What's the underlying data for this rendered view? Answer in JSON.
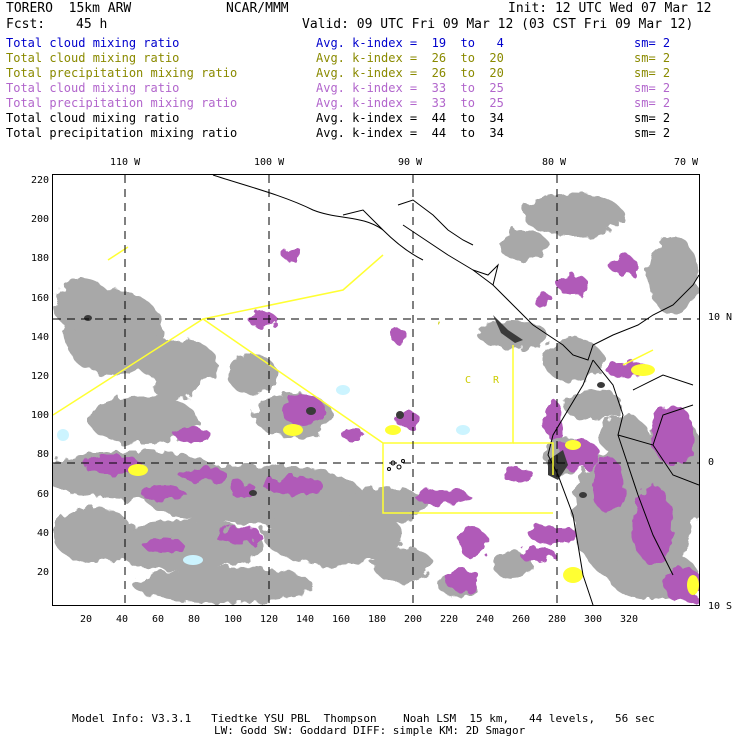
{
  "header": {
    "model": "TORERO  15km ARW",
    "org": "NCAR/MMM",
    "init": "Init: 12 UTC Wed 07 Mar 12",
    "fcst_label": "Fcst:",
    "fcst_value": "45 h",
    "valid": "Valid: 09 UTC Fri 09 Mar 12 (03 CST Fri 09 Mar 12)"
  },
  "legend": [
    {
      "name": "Total cloud mixing ratio",
      "kindex": "Avg. k-index =  19  to   4",
      "sm": "sm= 2",
      "color": "#0000cc"
    },
    {
      "name": "Total cloud mixing ratio",
      "kindex": "Avg. k-index =  26  to  20",
      "sm": "sm= 2",
      "color": "#8a8a00"
    },
    {
      "name": "Total precipitation mixing ratio",
      "kindex": "Avg. k-index =  26  to  20",
      "sm": "sm= 2",
      "color": "#8a8a00"
    },
    {
      "name": "Total cloud mixing ratio",
      "kindex": "Avg. k-index =  33  to  25",
      "sm": "sm= 2",
      "color": "#b266cc"
    },
    {
      "name": "Total precipitation mixing ratio",
      "kindex": "Avg. k-index =  33  to  25",
      "sm": "sm= 2",
      "color": "#b266cc"
    },
    {
      "name": "Total cloud mixing ratio",
      "kindex": "Avg. k-index =  44  to  34",
      "sm": "sm= 2",
      "color": "#000000"
    },
    {
      "name": "Total precipitation mixing ratio",
      "kindex": "Avg. k-index =  44  to  34",
      "sm": "sm= 2",
      "color": "#000000"
    }
  ],
  "map": {
    "lon_labels": [
      "110 W",
      "100 W",
      "90 W",
      "80 W",
      "70 W"
    ],
    "lat_labels": [
      "10 N",
      "0",
      "10 S"
    ],
    "x_ticks": [
      "20",
      "40",
      "60",
      "80",
      "100",
      "120",
      "140",
      "160",
      "180",
      "200",
      "220",
      "240",
      "260",
      "280",
      "300",
      "320"
    ],
    "y_ticks": [
      "220",
      "200",
      "180",
      "160",
      "140",
      "120",
      "100",
      "80",
      "60",
      "40",
      "20"
    ],
    "region_labels": [
      "C",
      "R"
    ],
    "colors": {
      "cloud_gray": "#a8a8a8",
      "precip_magenta": "#b05ab8",
      "dark": "#3a3a3a",
      "yellow": "#ffff33",
      "cyan": "#ccf4ff"
    }
  },
  "footer": {
    "line1": "Model Info: V3.3.1   Tiedtke YSU PBL  Thompson    Noah LSM  15 km,   44 levels,   56 sec",
    "line2": "LW: Godd SW: Goddard DIFF: simple KM: 2D Smagor"
  }
}
